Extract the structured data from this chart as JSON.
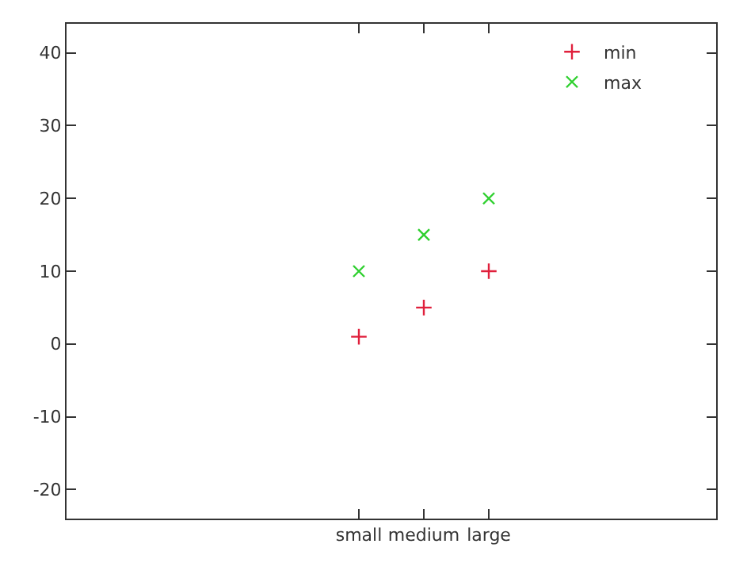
{
  "chart_data": {
    "type": "scatter",
    "categories": [
      null,
      null,
      null,
      null,
      "small",
      "medium",
      "large",
      null,
      null,
      null
    ],
    "ylim": [
      -24,
      44
    ],
    "yticks": [
      -20,
      -10,
      0,
      10,
      20,
      30,
      40
    ],
    "series": [
      {
        "name": "min",
        "color": "#e0203c",
        "marker": "cross",
        "values": [
          null,
          null,
          null,
          null,
          1,
          5,
          10,
          null,
          null,
          null
        ]
      },
      {
        "name": "max",
        "color": "#30d030",
        "marker": "cross",
        "values": [
          null,
          null,
          null,
          null,
          10,
          15,
          20,
          null,
          null,
          null
        ]
      }
    ],
    "legend": "top right"
  }
}
